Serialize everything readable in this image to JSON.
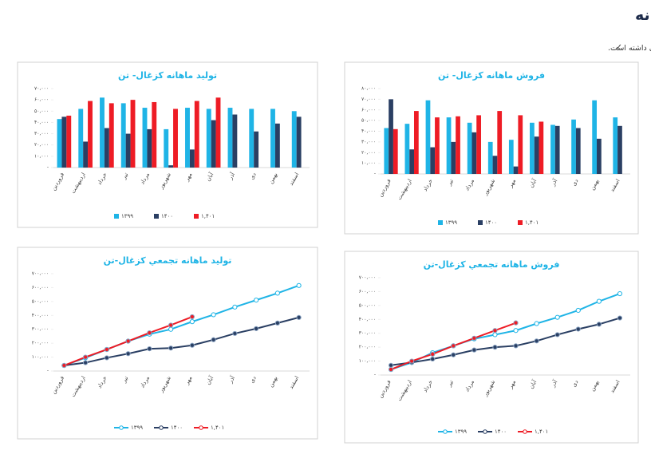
{
  "page": {
    "title": "معرفی شرکت- کزغال، عملکرد ماهانه",
    "bullet": "✓",
    "note": "شرکت به علت اورهال در سال گذشته تولید و متعاقبا فروش مقداری کمتری داشته که در سال جاری تولید و فروش روند بهتری داشته است."
  },
  "chart_data": [
    {
      "type": "bar",
      "title": "فروش ماهانه  کزغال- تن",
      "categories": [
        "فروردین",
        "اردیبهشت",
        "خرداد",
        "تیر",
        "مرداد",
        "شهریور",
        "مهر",
        "آبان",
        "آذر",
        "دی",
        "بهمن",
        "اسفند"
      ],
      "series": [
        {
          "name": "۱۳۹۹",
          "color": "#1fb4e6",
          "values": [
            43000,
            47000,
            69000,
            53000,
            48000,
            30000,
            32000,
            48000,
            46000,
            51000,
            69000,
            53000
          ]
        },
        {
          "name": "۱۴۰۰",
          "color": "#2a3f63",
          "values": [
            70000,
            23000,
            25000,
            30000,
            39000,
            17000,
            7000,
            35000,
            45000,
            43000,
            33000,
            45000
          ]
        },
        {
          "name": "۱,۴۰۱",
          "color": "#ee1c25",
          "values": [
            42000,
            59000,
            53000,
            54000,
            55000,
            59000,
            55000,
            49000,
            null,
            null,
            null,
            null
          ]
        }
      ],
      "ylim": [
        0,
        80000
      ],
      "yticks": [
        {
          "value": 0,
          "label": "-"
        },
        {
          "value": 10000,
          "label": "۱۰,۰۰۰"
        },
        {
          "value": 20000,
          "label": "۲۰,۰۰۰"
        },
        {
          "value": 30000,
          "label": "۳۰,۰۰۰"
        },
        {
          "value": 40000,
          "label": "۴۰,۰۰۰"
        },
        {
          "value": 50000,
          "label": "۵۰,۰۰۰"
        },
        {
          "value": 60000,
          "label": "۶۰,۰۰۰"
        },
        {
          "value": 70000,
          "label": "۷۰,۰۰۰"
        },
        {
          "value": 80000,
          "label": "۸۰,۰۰۰"
        }
      ],
      "legend": "bottom"
    },
    {
      "type": "bar",
      "title": "تولید ماهانه  کزغال- تن",
      "categories": [
        "فروردین",
        "اردیبهشت",
        "خرداد",
        "تیر",
        "مرداد",
        "شهریور",
        "مهر",
        "آبان",
        "آذر",
        "دی",
        "بهمن",
        "اسفند"
      ],
      "series": [
        {
          "name": "۱۳۹۹",
          "color": "#1fb4e6",
          "values": [
            43000,
            52000,
            62000,
            57000,
            53000,
            34000,
            53000,
            52000,
            53000,
            52000,
            52000,
            50000
          ]
        },
        {
          "name": "۱۴۰۰",
          "color": "#2a3f63",
          "values": [
            45000,
            23000,
            35000,
            30000,
            34000,
            2000,
            16000,
            42000,
            47000,
            32000,
            39000,
            45000
          ]
        },
        {
          "name": "۱,۴۰۱",
          "color": "#ee1c25",
          "values": [
            46000,
            59000,
            57000,
            60000,
            58000,
            52000,
            59000,
            62000,
            null,
            null,
            null,
            null
          ]
        }
      ],
      "ylim": [
        0,
        70000
      ],
      "yticks": [
        {
          "value": 0,
          "label": "-"
        },
        {
          "value": 10000,
          "label": "۱۰,۰۰۰"
        },
        {
          "value": 20000,
          "label": "۲۰,۰۰۰"
        },
        {
          "value": 30000,
          "label": "۳۰,۰۰۰"
        },
        {
          "value": 40000,
          "label": "۴۰,۰۰۰"
        },
        {
          "value": 50000,
          "label": "۵۰,۰۰۰"
        },
        {
          "value": 60000,
          "label": "۶۰,۰۰۰"
        },
        {
          "value": 70000,
          "label": "۷۰,۰۰۰"
        }
      ],
      "legend": "bottom"
    },
    {
      "type": "line",
      "title": "فروش ماهانه تجمعي  کزغال-تن",
      "categories": [
        "فروردین",
        "اردیبهشت",
        "خرداد",
        "تیر",
        "مرداد",
        "شهریور",
        "مهر",
        "آبان",
        "آذر",
        "دی",
        "بهمن",
        "اسفند"
      ],
      "series": [
        {
          "name": "۱۳۹۹",
          "color": "#1fb4e6",
          "values": [
            40000,
            90000,
            160000,
            210000,
            260000,
            290000,
            320000,
            370000,
            415000,
            465000,
            530000,
            585000
          ]
        },
        {
          "name": "۱۴۰۰",
          "color": "#2a3f63",
          "values": [
            70000,
            90000,
            115000,
            145000,
            180000,
            200000,
            210000,
            245000,
            290000,
            330000,
            365000,
            410000
          ]
        },
        {
          "name": "۱,۴۰۱",
          "color": "#ee1c25",
          "values": [
            40000,
            100000,
            150000,
            210000,
            265000,
            320000,
            375000,
            null,
            null,
            null,
            null,
            null
          ]
        }
      ],
      "ylim": [
        0,
        700000
      ],
      "yticks": [
        {
          "value": 0,
          "label": "-"
        },
        {
          "value": 100000,
          "label": "۱۰۰,۰۰۰"
        },
        {
          "value": 200000,
          "label": "۲۰۰,۰۰۰"
        },
        {
          "value": 300000,
          "label": "۳۰۰,۰۰۰"
        },
        {
          "value": 400000,
          "label": "۴۰۰,۰۰۰"
        },
        {
          "value": 500000,
          "label": "۵۰۰,۰۰۰"
        },
        {
          "value": 600000,
          "label": "۶۰۰,۰۰۰"
        },
        {
          "value": 700000,
          "label": "۷۰۰,۰۰۰"
        }
      ],
      "legend": "bottom"
    },
    {
      "type": "line",
      "title": "تولید ماهانه تجمعي  کزغال-تن",
      "categories": [
        "فروردین",
        "اردیبهشت",
        "خرداد",
        "تیر",
        "مرداد",
        "شهریور",
        "مهر",
        "آبان",
        "آذر",
        "دی",
        "بهمن",
        "اسفند"
      ],
      "series": [
        {
          "name": "۱۳۹۹",
          "color": "#1fb4e6",
          "values": [
            40000,
            95000,
            155000,
            215000,
            265000,
            300000,
            355000,
            405000,
            460000,
            510000,
            560000,
            615000
          ]
        },
        {
          "name": "۱۴۰۰",
          "color": "#2a3f63",
          "values": [
            40000,
            60000,
            95000,
            125000,
            160000,
            165000,
            185000,
            225000,
            270000,
            305000,
            345000,
            385000
          ]
        },
        {
          "name": "۱,۴۰۱",
          "color": "#ee1c25",
          "values": [
            40000,
            100000,
            155000,
            215000,
            275000,
            330000,
            390000,
            null,
            null,
            null,
            null,
            null
          ]
        }
      ],
      "ylim": [
        0,
        700000
      ],
      "yticks": [
        {
          "value": 0,
          "label": "-"
        },
        {
          "value": 100000,
          "label": "۱۰۰,۰۰۰"
        },
        {
          "value": 200000,
          "label": "۲۰۰,۰۰۰"
        },
        {
          "value": 300000,
          "label": "۳۰۰,۰۰۰"
        },
        {
          "value": 400000,
          "label": "۴۰۰,۰۰۰"
        },
        {
          "value": 500000,
          "label": "۵۰۰,۰۰۰"
        },
        {
          "value": 600000,
          "label": "۶۰۰,۰۰۰"
        },
        {
          "value": 700000,
          "label": "۷۰۰,۰۰۰"
        }
      ],
      "legend": "bottom"
    }
  ]
}
